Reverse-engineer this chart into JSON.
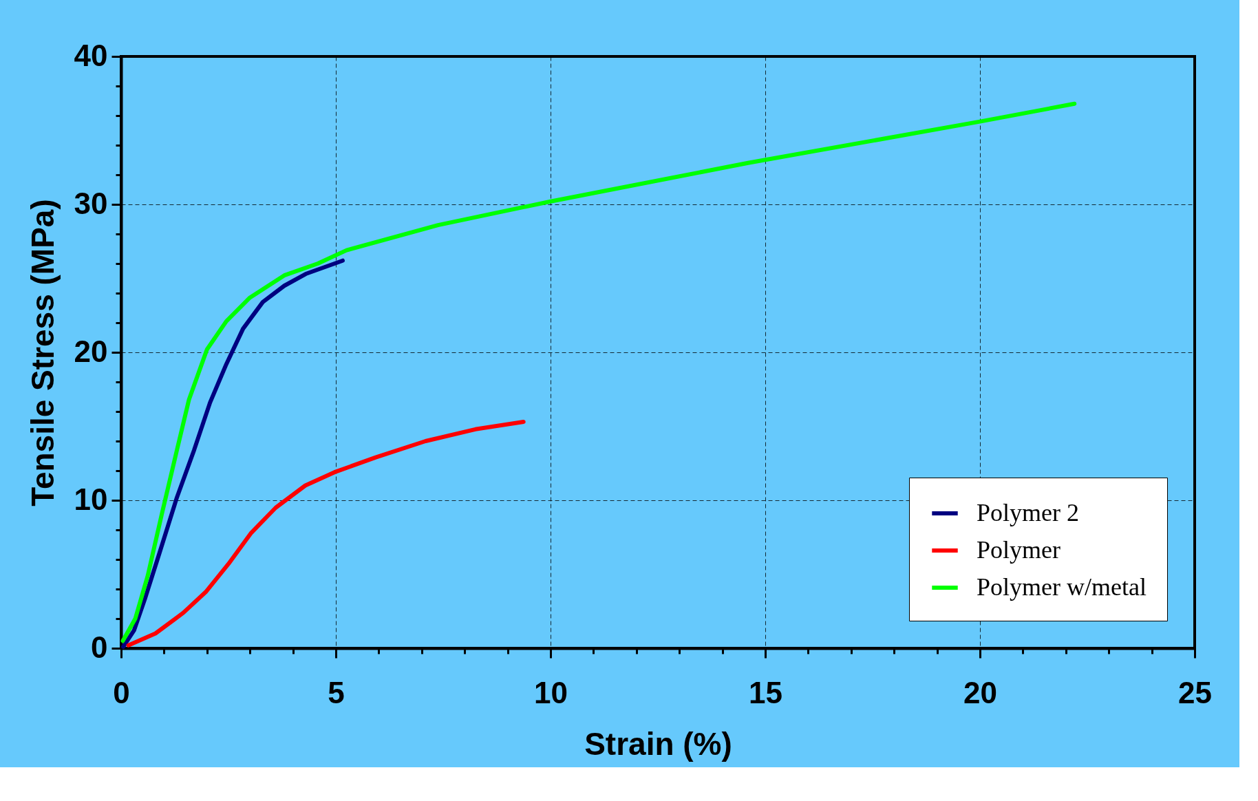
{
  "chart_data": {
    "type": "line",
    "xlabel": "Strain (%)",
    "ylabel": "Tensile Stress (MPa)",
    "xlim": [
      0,
      25
    ],
    "ylim": [
      0,
      40
    ],
    "xticks": [
      0,
      {
        "value": 1,
        "label": null
      },
      {
        "value": 2,
        "label": null
      },
      {
        "value": 3,
        "label": null
      },
      {
        "value": 4,
        "label": null
      },
      5,
      {
        "value": 6,
        "label": null
      },
      {
        "value": 7,
        "label": null
      },
      {
        "value": 8,
        "label": null
      },
      {
        "value": 9,
        "label": null
      },
      10,
      {
        "value": 11,
        "label": null
      },
      {
        "value": 12,
        "label": null
      },
      {
        "value": 13,
        "label": null
      },
      {
        "value": 14,
        "label": null
      },
      15,
      {
        "value": 16,
        "label": null
      },
      {
        "value": 17,
        "label": null
      },
      {
        "value": 18,
        "label": null
      },
      {
        "value": 19,
        "label": null
      },
      20,
      {
        "value": 21,
        "label": null
      },
      {
        "value": 22,
        "label": null
      },
      {
        "value": 23,
        "label": null
      },
      {
        "value": 24,
        "label": null
      },
      25
    ],
    "yticks": [
      0,
      {
        "value": 2,
        "label": null
      },
      {
        "value": 4,
        "label": null
      },
      {
        "value": 6,
        "label": null
      },
      {
        "value": 8,
        "label": null
      },
      10,
      {
        "value": 12,
        "label": null
      },
      {
        "value": 14,
        "label": null
      },
      {
        "value": 16,
        "label": null
      },
      {
        "value": 18,
        "label": null
      },
      20,
      {
        "value": 22,
        "label": null
      },
      {
        "value": 24,
        "label": null
      },
      {
        "value": 26,
        "label": null
      },
      {
        "value": 28,
        "label": null
      },
      30,
      {
        "value": 32,
        "label": null
      },
      {
        "value": 34,
        "label": null
      },
      {
        "value": 36,
        "label": null
      },
      {
        "value": 38,
        "label": null
      },
      40
    ],
    "grid": true,
    "legend": "bottom right",
    "marker": "none",
    "line_style": "solid",
    "series": [
      {
        "name": "Polymer 2",
        "color": "#000080",
        "x": [
          0.05,
          0.3,
          0.55,
          0.9,
          1.3,
          1.7,
          2.07,
          2.45,
          2.84,
          3.3,
          3.8,
          4.3,
          5.16
        ],
        "values": [
          0.1,
          1.2,
          3.3,
          6.5,
          10.2,
          13.4,
          16.6,
          19.2,
          21.6,
          23.4,
          24.5,
          25.3,
          26.2
        ]
      },
      {
        "name": "Polymer",
        "color": "#ff0000",
        "x": [
          0.17,
          0.8,
          1.45,
          1.97,
          2.5,
          3.03,
          3.6,
          4.29,
          4.97,
          5.93,
          7.09,
          8.25,
          9.37
        ],
        "values": [
          0.2,
          1.0,
          2.4,
          3.8,
          5.7,
          7.8,
          9.5,
          11.0,
          11.9,
          12.9,
          14.0,
          14.8,
          15.3
        ]
      },
      {
        "name": "Polymer w/metal",
        "color": "#00ff00",
        "x": [
          0.04,
          0.33,
          0.62,
          0.95,
          1.3,
          1.58,
          2.0,
          2.45,
          3.0,
          3.8,
          4.58,
          5.25,
          7.38,
          10.0,
          14.6,
          20.0,
          22.2
        ],
        "values": [
          0.5,
          2.0,
          4.9,
          9.1,
          13.4,
          16.8,
          20.2,
          22.1,
          23.7,
          25.2,
          26.0,
          26.9,
          28.6,
          30.2,
          32.8,
          35.6,
          36.8
        ]
      }
    ]
  }
}
